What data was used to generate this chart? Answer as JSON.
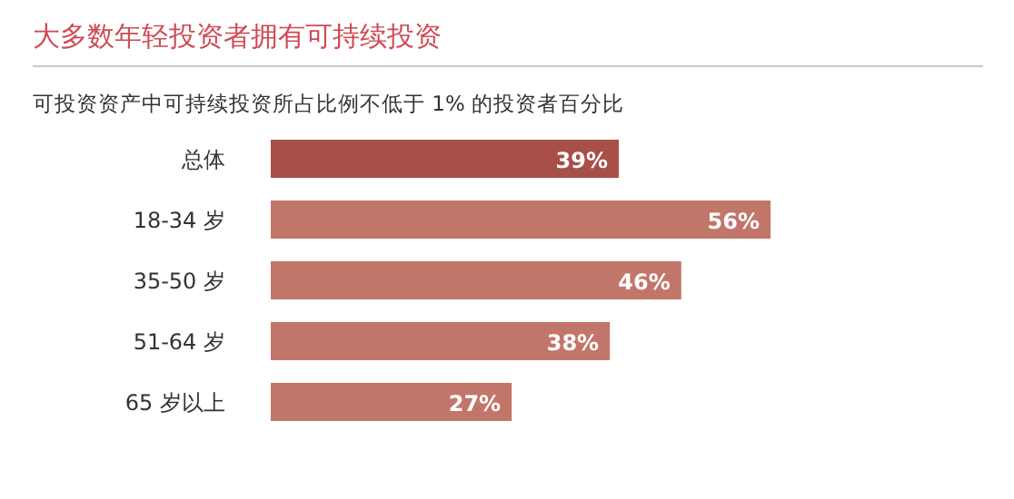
{
  "chart_data": {
    "type": "bar",
    "orientation": "horizontal",
    "title": "大多数年轻投资者拥有可持续投资",
    "subtitle": "可投资资产中可持续投资所占比例不低于 1% 的投资者百分比",
    "categories": [
      "总体",
      "18-34 岁",
      "35-50 岁",
      "51-64 岁",
      "65 岁以上"
    ],
    "values": [
      39,
      56,
      46,
      38,
      27
    ],
    "colors": [
      "#a84f47",
      "#c27669",
      "#c27669",
      "#c27669",
      "#c27669"
    ],
    "value_labels": [
      "39%",
      "56%",
      "46%",
      "38%",
      "27%"
    ]
  }
}
